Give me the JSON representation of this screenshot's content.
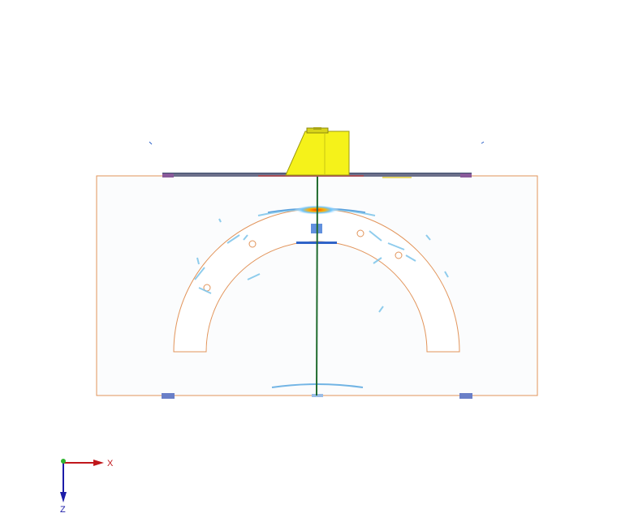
{
  "triad": {
    "x_label": "X",
    "z_label": "Z",
    "x_color": "#c0171b",
    "z_color": "#1c1ca8",
    "y_color": "#2fb52f"
  },
  "scene": {
    "specimen_outline_color": "#e2945a",
    "probe_color": "#f5f21a",
    "beam_axis_color": "#1f6b2e",
    "background": "#ffffff"
  }
}
